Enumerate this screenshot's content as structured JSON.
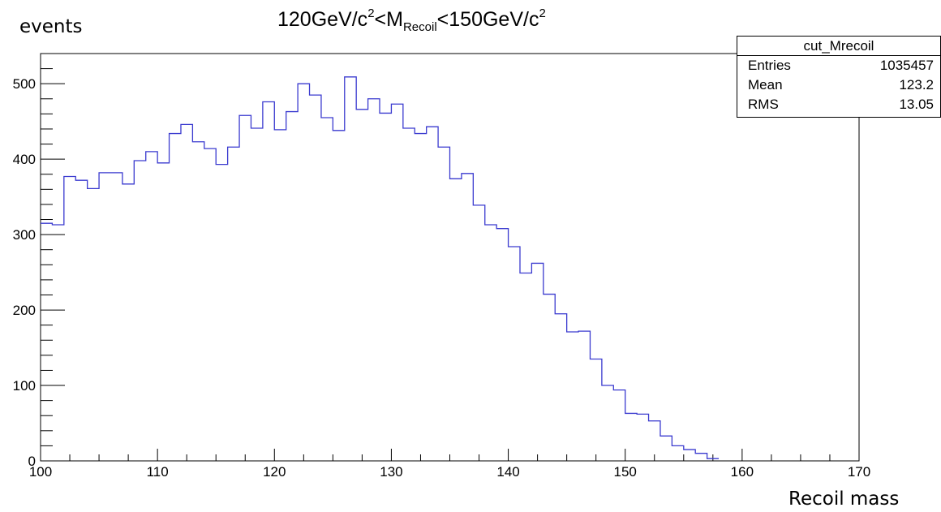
{
  "chart_data": {
    "type": "histogram",
    "title": {
      "pre": "120GeV/c",
      "sup1": "2",
      "mid": "<M",
      "sub": "Recoil",
      "post": "<150GeV/c",
      "sup2": "2"
    },
    "xlabel": "Recoil mass",
    "ylabel": "events",
    "xlim": [
      100,
      170
    ],
    "ylim": [
      0,
      540
    ],
    "xticks": [
      100,
      110,
      120,
      130,
      140,
      150,
      160,
      170
    ],
    "yticks": [
      0,
      100,
      200,
      300,
      400,
      500
    ],
    "line_color": "#3a3acf",
    "bin_edges": [
      100,
      101,
      102,
      103,
      104,
      105,
      106,
      107,
      108,
      109,
      110,
      111,
      112,
      113,
      114,
      115,
      116,
      117,
      118,
      119,
      120,
      121,
      122,
      123,
      124,
      125,
      126,
      127,
      128,
      129,
      130,
      131,
      132,
      133,
      134,
      135,
      136,
      137,
      138,
      139,
      140,
      141,
      142,
      143,
      144,
      145,
      146,
      147,
      148,
      149,
      150,
      151,
      152,
      153,
      154,
      155,
      156,
      157,
      158
    ],
    "values": [
      315,
      313,
      377,
      372,
      361,
      382,
      382,
      367,
      398,
      410,
      395,
      434,
      446,
      423,
      414,
      393,
      416,
      458,
      441,
      476,
      439,
      463,
      500,
      485,
      455,
      438,
      509,
      466,
      480,
      461,
      473,
      441,
      434,
      443,
      416,
      374,
      381,
      339,
      313,
      308,
      284,
      249,
      262,
      221,
      195,
      171,
      172,
      135,
      100,
      94,
      63,
      62,
      53,
      33,
      20,
      15,
      10,
      3
    ]
  },
  "stats": {
    "name": "cut_Mrecoil",
    "rows": [
      {
        "label": "Entries",
        "value": "1035457"
      },
      {
        "label": "Mean",
        "value": "123.2"
      },
      {
        "label": "RMS",
        "value": "13.05"
      }
    ]
  }
}
